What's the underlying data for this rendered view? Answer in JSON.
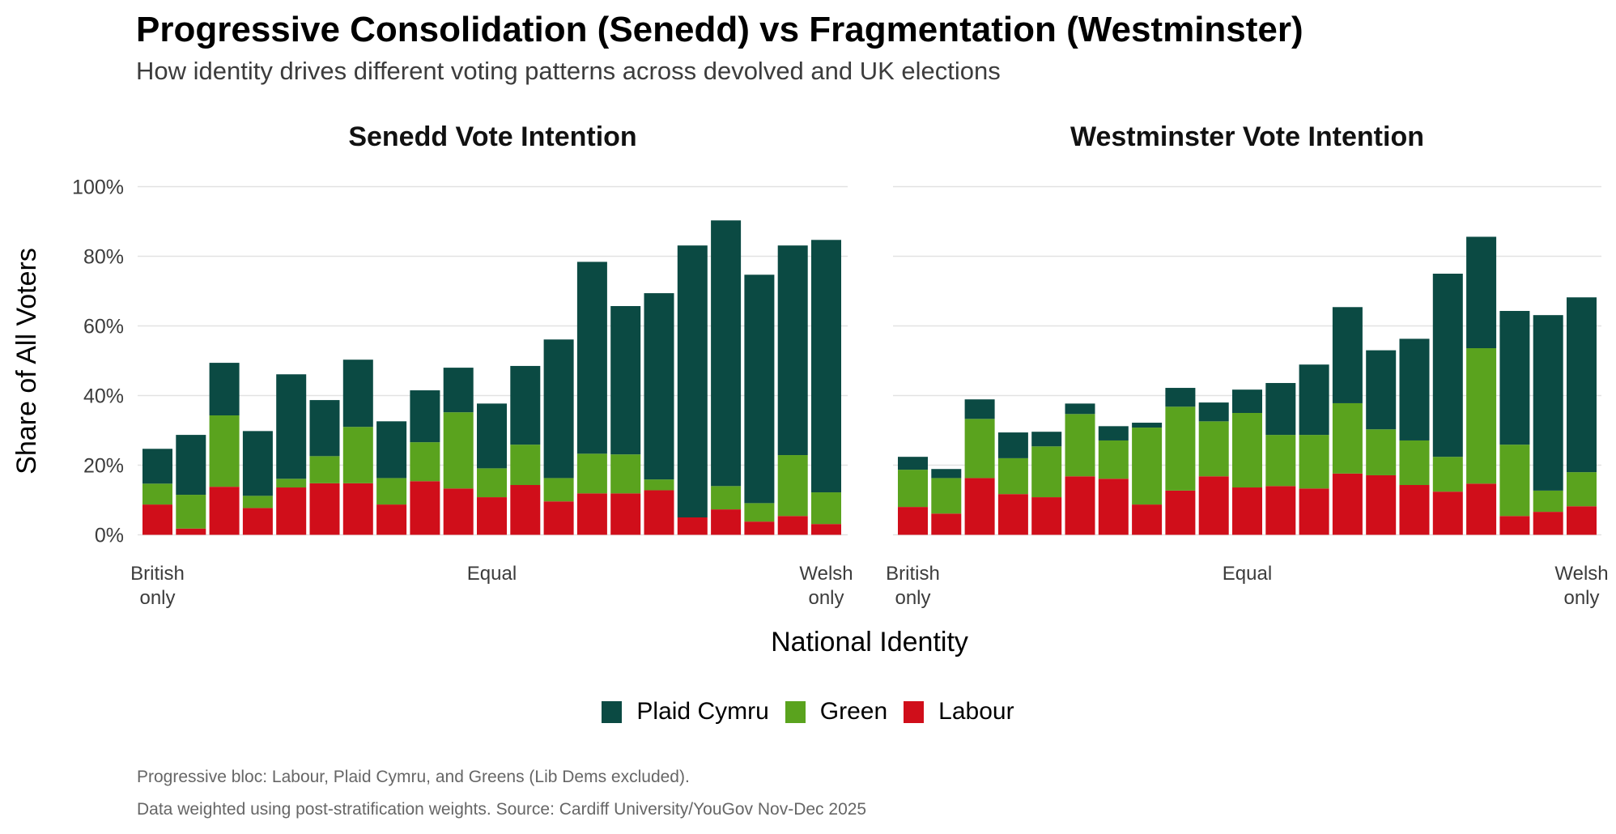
{
  "title": "Progressive Consolidation (Senedd) vs Fragmentation (Westminster)",
  "subtitle": "How identity drives different voting patterns across devolved and UK elections",
  "caption": [
    "Progressive bloc: Labour, Plaid Cymru, and Greens (Lib Dems excluded).",
    "Data weighted using post-stratification weights. Source: Cardiff University/YouGov Nov-Dec 2025"
  ],
  "legend": [
    {
      "label": "Plaid Cymru",
      "color": "#0b4a43"
    },
    {
      "label": "Green",
      "color": "#5aa31e"
    },
    {
      "label": "Labour",
      "color": "#d00e1a"
    }
  ],
  "chart_data": {
    "type": "bar",
    "stacked": true,
    "xlabel": "National Identity",
    "ylabel": "Share of All Voters",
    "ylim": [
      0,
      100
    ],
    "yticks": [
      "0%",
      "20%",
      "40%",
      "60%",
      "80%",
      "100%"
    ],
    "ytick_values": [
      0,
      20,
      40,
      60,
      80,
      100
    ],
    "xtick_labels": [
      {
        "index": 0,
        "lines": [
          "British",
          "only"
        ]
      },
      {
        "index": 10,
        "lines": [
          "Equal"
        ]
      },
      {
        "index": 20,
        "lines": [
          "Welsh",
          "only"
        ]
      }
    ],
    "grid": "horizontal",
    "legend_position": "bottom",
    "stack_order": [
      "Labour",
      "Green",
      "Plaid Cymru"
    ],
    "panels": [
      {
        "title": "Senedd Vote Intention",
        "categories": [
          1,
          2,
          3,
          4,
          5,
          6,
          7,
          8,
          9,
          10,
          11,
          12,
          13,
          14,
          15,
          16,
          17,
          18,
          19,
          20,
          21
        ],
        "series": [
          {
            "name": "Labour",
            "values": [
              8.7,
              1.8,
              13.8,
              7.7,
              13.6,
              14.8,
              14.8,
              8.7,
              15.4,
              13.3,
              10.8,
              14.3,
              9.6,
              11.9,
              11.9,
              12.8,
              5.0,
              7.3,
              3.8,
              5.4,
              3.1
            ]
          },
          {
            "name": "Green",
            "values": [
              6.0,
              9.7,
              20.5,
              3.5,
              2.5,
              7.8,
              16.2,
              7.6,
              11.2,
              21.9,
              8.3,
              11.6,
              6.7,
              11.4,
              11.2,
              3.1,
              0.0,
              6.7,
              5.3,
              17.5,
              9.1
            ]
          },
          {
            "name": "Plaid Cymru",
            "values": [
              10.0,
              17.2,
              15.1,
              18.6,
              30.0,
              16.1,
              19.3,
              16.3,
              14.9,
              12.8,
              18.6,
              22.6,
              39.8,
              55.1,
              42.6,
              53.5,
              78.1,
              76.3,
              65.6,
              60.2,
              72.5
            ]
          }
        ]
      },
      {
        "title": "Westminster Vote Intention",
        "categories": [
          1,
          2,
          3,
          4,
          5,
          6,
          7,
          8,
          9,
          10,
          11,
          12,
          13,
          14,
          15,
          16,
          17,
          18,
          19,
          20,
          21
        ],
        "series": [
          {
            "name": "Labour",
            "values": [
              8.0,
              6.1,
              16.3,
              11.7,
              10.8,
              16.8,
              16.1,
              8.7,
              12.7,
              16.8,
              13.6,
              14.0,
              13.3,
              17.6,
              17.1,
              14.3,
              12.4,
              14.7,
              5.4,
              6.6,
              8.2
            ]
          },
          {
            "name": "Green",
            "values": [
              10.7,
              10.2,
              17.0,
              10.3,
              14.6,
              17.9,
              11.0,
              22.1,
              24.1,
              15.8,
              21.4,
              14.7,
              15.4,
              20.2,
              13.2,
              12.8,
              10.0,
              38.9,
              20.5,
              6.1,
              9.8
            ]
          },
          {
            "name": "Plaid Cymru",
            "values": [
              3.7,
              2.6,
              5.6,
              7.4,
              4.2,
              3.0,
              4.1,
              1.4,
              5.4,
              5.4,
              6.7,
              14.9,
              20.2,
              27.6,
              22.7,
              29.2,
              52.6,
              32.0,
              38.4,
              50.4,
              50.2
            ]
          }
        ]
      }
    ]
  }
}
